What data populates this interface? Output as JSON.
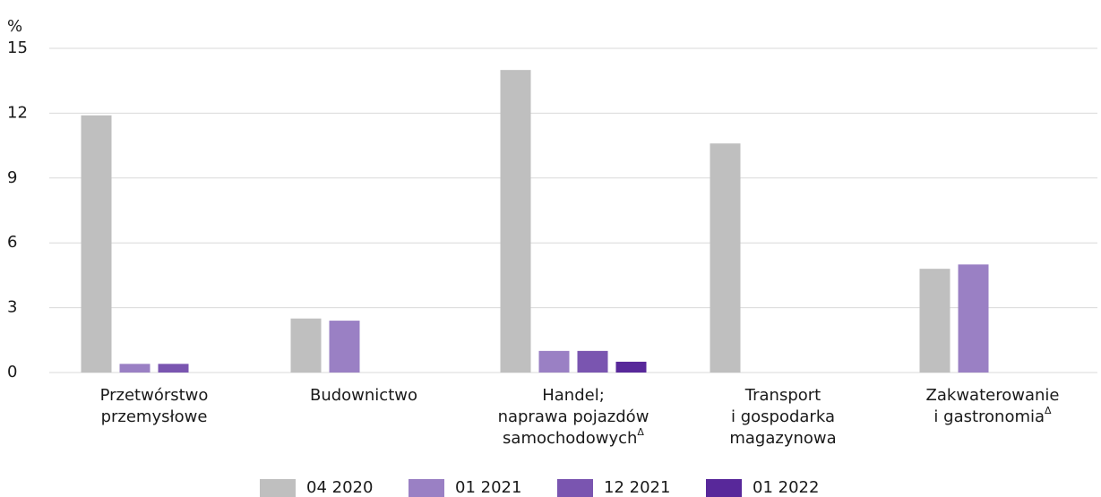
{
  "chart_data": {
    "type": "bar",
    "y_label": "%",
    "categories": [
      "Przetwórstwo\nprzemysłowe",
      "Budownictwo",
      "Handel;\nnaprawa pojazdów\nsamochodowychΔ",
      "Transport\ni gospodarka\nmagazynowa",
      "Zakwaterowanie\ni gastronomiaΔ"
    ],
    "series": [
      {
        "name": "04 2020",
        "color": "#bfbfbf",
        "values": [
          11.9,
          2.5,
          14.0,
          10.6,
          4.8
        ]
      },
      {
        "name": "01 2021",
        "color": "#9a80c4",
        "values": [
          0.4,
          2.4,
          1.0,
          null,
          5.0
        ]
      },
      {
        "name": "12 2021",
        "color": "#7a55b0",
        "values": [
          0.4,
          null,
          1.0,
          null,
          null
        ]
      },
      {
        "name": "01 2022",
        "color": "#58289a",
        "values": [
          null,
          null,
          0.5,
          null,
          null
        ]
      }
    ],
    "ylim": [
      0,
      15
    ],
    "yticks": [
      0,
      3,
      6,
      9,
      12,
      15
    ],
    "grid": true,
    "legend": "bottom"
  }
}
